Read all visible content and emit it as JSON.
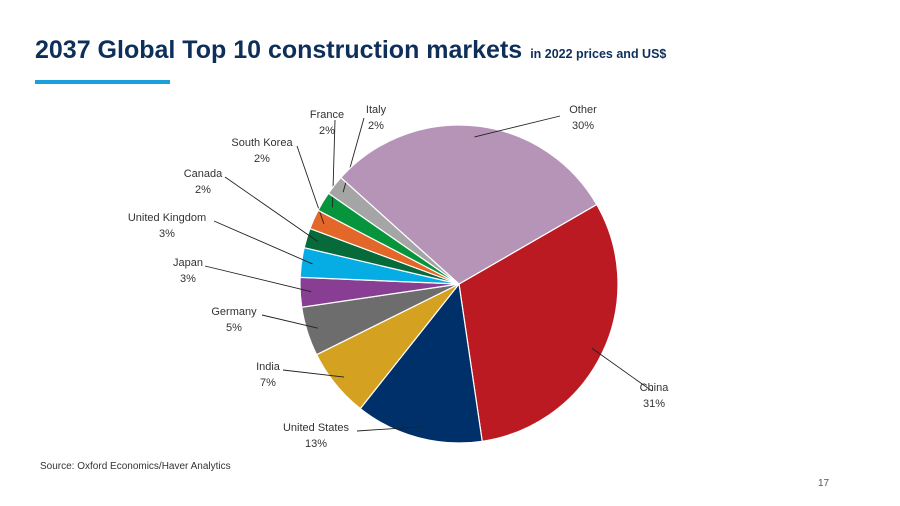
{
  "slide": {
    "title": "2037 Global Top 10 construction markets",
    "subtitle": "in 2022 prices and US$",
    "source": "Source: Oxford Economics/Haver Analytics",
    "page_number": "17"
  },
  "chart_data": {
    "type": "pie",
    "title": "2037 Global Top 10 construction markets",
    "subtitle": "in 2022 prices and US$",
    "unit": "%",
    "start_angle_deg": 60,
    "direction": "clockwise",
    "slices": [
      {
        "label": "China",
        "value": 31,
        "display": "31%",
        "color": "#bb1a22"
      },
      {
        "label": "United States",
        "value": 13,
        "display": "13%",
        "color": "#00306a"
      },
      {
        "label": "India",
        "value": 7,
        "display": "7%",
        "color": "#d4a120"
      },
      {
        "label": "Germany",
        "value": 5,
        "display": "5%",
        "color": "#6d6d6d"
      },
      {
        "label": "Japan",
        "value": 3,
        "display": "3%",
        "color": "#883e92"
      },
      {
        "label": "United Kingdom",
        "value": 3,
        "display": "3%",
        "color": "#05ade4"
      },
      {
        "label": "Canada",
        "value": 2,
        "display": "2%",
        "color": "#066a3a"
      },
      {
        "label": "South Korea",
        "value": 2,
        "display": "2%",
        "color": "#e26729"
      },
      {
        "label": "France",
        "value": 2,
        "display": "2%",
        "color": "#06943c"
      },
      {
        "label": "Italy",
        "value": 2,
        "display": "2%",
        "color": "#a5a5a5"
      },
      {
        "label": "Other",
        "value": 30,
        "display": "30%",
        "color": "#b594b8"
      }
    ]
  }
}
